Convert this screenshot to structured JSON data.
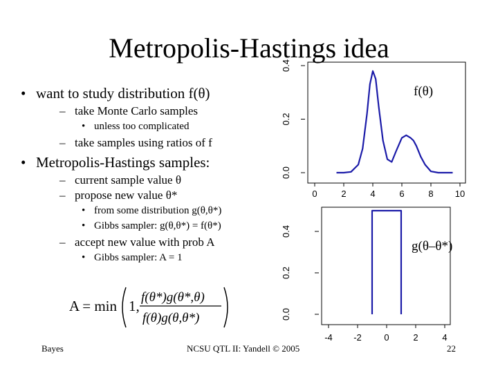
{
  "slide": {
    "title": "Metropolis-Hastings idea",
    "bullets": {
      "study": "want to study distribution f(θ)",
      "monte_carlo": "take Monte Carlo samples",
      "too_complicated": "unless too complicated",
      "ratios": "take samples using ratios of f",
      "mh_samples": "Metropolis-Hastings samples:",
      "current": "current sample value θ",
      "propose": "propose new value θ*",
      "from_dist": "from some distribution g(θ,θ*)",
      "gibbs_g": "Gibbs sampler: g(θ,θ*) = f(θ*)",
      "accept": "accept new value with prob A",
      "gibbs_a": "Gibbs sampler: A = 1"
    },
    "equation": {
      "lhs": "A = min",
      "one": "1,",
      "numerator": "f(θ*)g(θ*,θ)",
      "denominator": "f(θ)g(θ,θ*)"
    },
    "footer": {
      "left": "Bayes",
      "center": "NCSU QTL II: Yandell © 2005",
      "page": "22"
    }
  },
  "chart_data": [
    {
      "type": "line",
      "series_label": "f(θ)",
      "color": "#1a1aa8",
      "xlim": [
        0,
        10
      ],
      "ylim": [
        0,
        0.4
      ],
      "x_ticks": [
        "0",
        "2",
        "4",
        "6",
        "8",
        "10"
      ],
      "y_ticks": [
        "0.0",
        "0.2",
        "0.4"
      ],
      "x": [
        1.5,
        2.0,
        2.5,
        3.0,
        3.3,
        3.6,
        3.8,
        4.0,
        4.2,
        4.4,
        4.7,
        5.0,
        5.3,
        5.6,
        6.0,
        6.3,
        6.6,
        6.8,
        7.0,
        7.3,
        7.6,
        8.0,
        8.5,
        9.0,
        9.5
      ],
      "y": [
        0.0,
        0.0,
        0.003,
        0.03,
        0.09,
        0.22,
        0.33,
        0.38,
        0.35,
        0.25,
        0.12,
        0.05,
        0.04,
        0.08,
        0.13,
        0.14,
        0.13,
        0.12,
        0.1,
        0.06,
        0.03,
        0.005,
        0.0,
        0.0,
        0.0
      ]
    },
    {
      "type": "line",
      "series_label": "g(θ–θ*)",
      "color": "#1a1aa8",
      "xlim": [
        -4,
        4
      ],
      "ylim": [
        0,
        0.5
      ],
      "x_ticks": [
        "-4",
        "-2",
        "0",
        "2",
        "4"
      ],
      "y_ticks": [
        "0.0",
        "0.2",
        "0.4"
      ],
      "x": [
        -1,
        -1,
        1,
        1
      ],
      "y": [
        0,
        0.5,
        0.5,
        0
      ]
    }
  ]
}
